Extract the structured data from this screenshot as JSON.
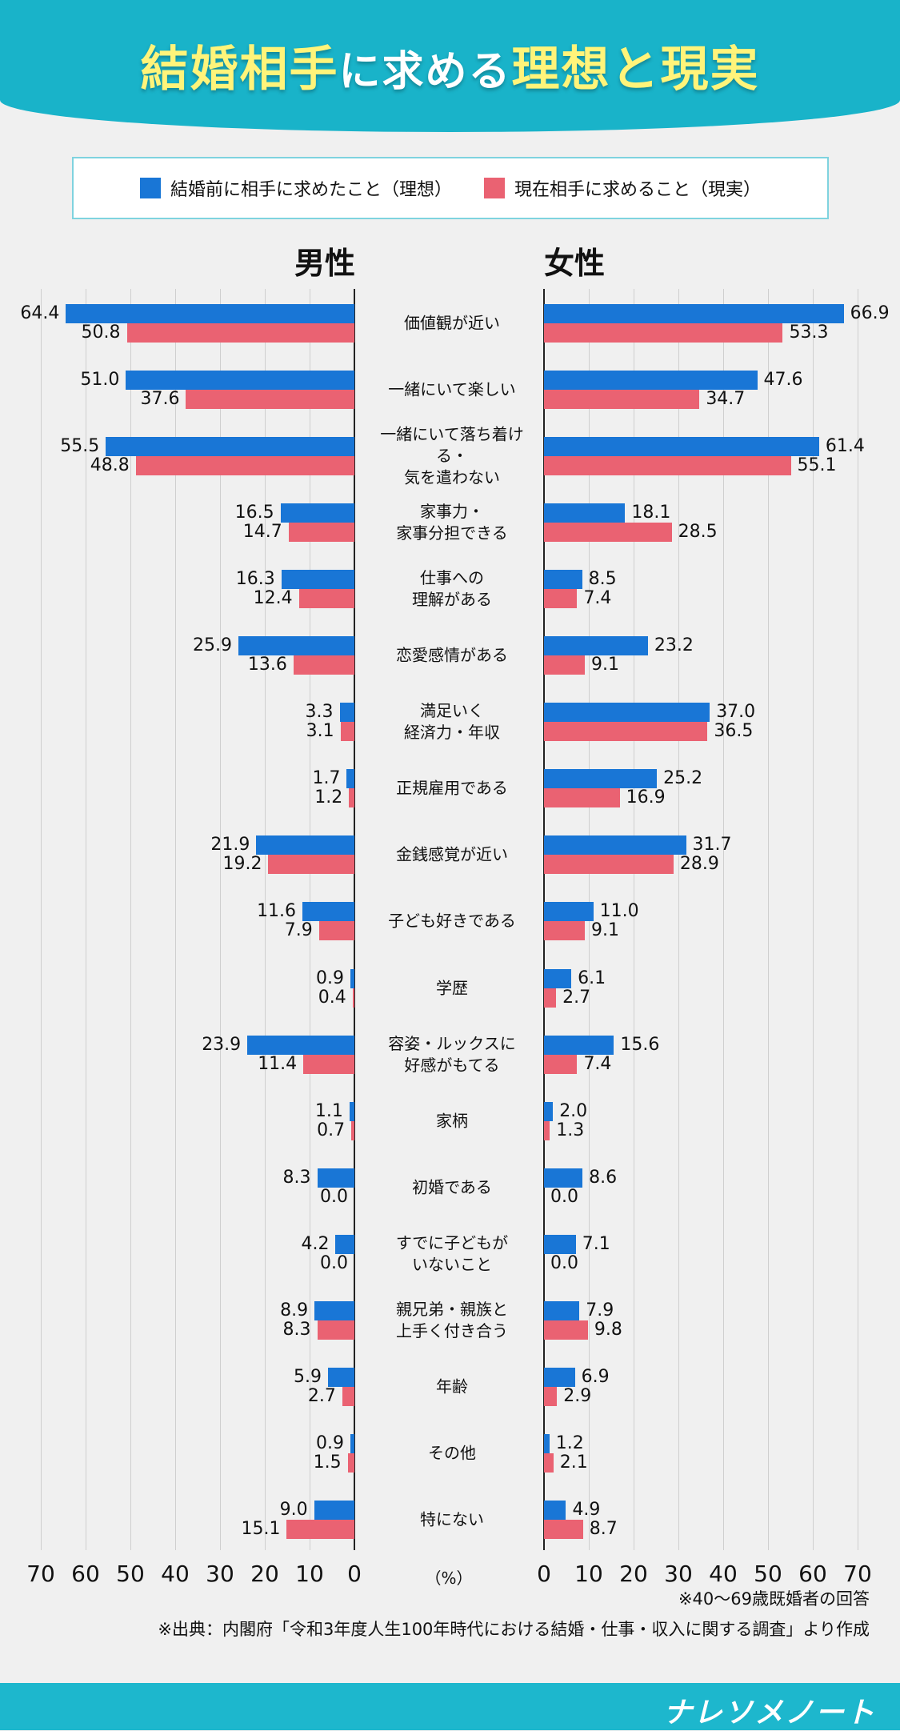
{
  "header": {
    "title_a": "結婚相手",
    "title_b": "に求める",
    "title_c": "理想と現実"
  },
  "legend": {
    "ideal": "結婚前に相手に求めたこと（理想）",
    "real": "現在相手に求めること（現実）"
  },
  "colors": {
    "ideal": "#1976d6",
    "real": "#ea6272",
    "teal": "#19b3c9"
  },
  "chart_data": {
    "type": "bar",
    "title": "結婚相手に求める理想と現実",
    "unit": "（%）",
    "panels": [
      "男性",
      "女性"
    ],
    "xlim": [
      0,
      70
    ],
    "ticks": [
      0,
      10,
      20,
      30,
      40,
      50,
      60,
      70
    ],
    "tick_labels": [
      "0",
      "10",
      "20",
      "30",
      "40",
      "50",
      "60",
      "70"
    ],
    "series": [
      "結婚前に相手に求めたこと（理想）",
      "現在相手に求めること（現実）"
    ],
    "categories": [
      "価値観が近い",
      "一緒にいて楽しい",
      "一緒にいて落ち着ける・\n気を遣わない",
      "家事力・\n家事分担できる",
      "仕事への\n理解がある",
      "恋愛感情がある",
      "満足いく\n経済力・年収",
      "正規雇用である",
      "金銭感覚が近い",
      "子ども好きである",
      "学歴",
      "容姿・ルックスに\n好感がもてる",
      "家柄",
      "初婚である",
      "すでに子どもが\nいないこと",
      "親兄弟・親族と\n上手く付き合う",
      "年齢",
      "その他",
      "特にない"
    ],
    "male_ideal": [
      "64.4",
      "51.0",
      "55.5",
      "16.5",
      "16.3",
      "25.9",
      "3.3",
      "1.7",
      "21.9",
      "11.6",
      "0.9",
      "23.9",
      "1.1",
      "8.3",
      "4.2",
      "8.9",
      "5.9",
      "0.9",
      "9.0"
    ],
    "male_real": [
      "50.8",
      "37.6",
      "48.8",
      "14.7",
      "12.4",
      "13.6",
      "3.1",
      "1.2",
      "19.2",
      "7.9",
      "0.4",
      "11.4",
      "0.7",
      "0.0",
      "0.0",
      "8.3",
      "2.7",
      "1.5",
      "15.1"
    ],
    "female_ideal": [
      "66.9",
      "47.6",
      "61.4",
      "18.1",
      "8.5",
      "23.2",
      "37.0",
      "25.2",
      "31.7",
      "11.0",
      "6.1",
      "15.6",
      "2.0",
      "8.6",
      "7.1",
      "7.9",
      "6.9",
      "1.2",
      "4.9"
    ],
    "female_real": [
      "53.3",
      "34.7",
      "55.1",
      "28.5",
      "7.4",
      "9.1",
      "36.5",
      "16.9",
      "28.9",
      "9.1",
      "2.7",
      "7.4",
      "1.3",
      "0.0",
      "0.0",
      "9.8",
      "2.9",
      "2.1",
      "8.7"
    ]
  },
  "notes": {
    "respondents": "※40～69歳既婚者の回答",
    "source": "※出典：内閣府「令和3年度人生100年時代における結婚・仕事・収入に関する調査」より作成"
  },
  "footer": {
    "logo": "ナレソメノート"
  }
}
